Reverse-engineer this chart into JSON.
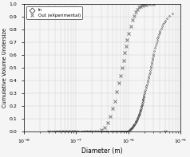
{
  "title": "",
  "xlabel": "Diameter (m)",
  "ylabel": "Cumulative Volume Undersize",
  "ylim": [
    0,
    1
  ],
  "xlim": [
    1e-08,
    1e-05
  ],
  "yticks": [
    0.0,
    0.1,
    0.2,
    0.3,
    0.4,
    0.5,
    0.6,
    0.7,
    0.8,
    0.9,
    1.0
  ],
  "legend_labels": [
    "In",
    "Out (eXperimental)"
  ],
  "in_color": "#444444",
  "out_color": "#777777",
  "in_x": [
    3e-08,
    3.2e-08,
    3.4e-08,
    3.6e-08,
    3.8e-08,
    4e-08,
    4.2e-08,
    4.4e-08,
    4.6e-08,
    4.8e-08,
    5e-08,
    5.2e-08,
    5.4e-08,
    5.6e-08,
    5.8e-08,
    6e-08,
    6.2e-08,
    6.4e-08,
    6.6e-08,
    6.8e-08,
    7e-08,
    7.2e-08,
    7.4e-08,
    7.6e-08,
    7.8e-08,
    8e-08,
    8.2e-08,
    8.4e-08,
    8.6e-08,
    8.8e-08,
    9e-08,
    9.2e-08,
    9.4e-08,
    9.6e-08,
    9.8e-08,
    1e-07,
    1.05e-07,
    1.1e-07,
    1.15e-07,
    1.2e-07,
    1.25e-07,
    1.3e-07,
    1.35e-07,
    1.4e-07,
    1.45e-07,
    1.5e-07,
    1.55e-07,
    1.6e-07,
    1.65e-07,
    1.7e-07,
    1.75e-07,
    1.8e-07,
    1.85e-07,
    1.9e-07,
    1.95e-07,
    2e-07,
    2.1e-07,
    2.2e-07,
    2.3e-07,
    2.4e-07,
    2.5e-07,
    2.6e-07,
    2.7e-07,
    2.8e-07,
    2.9e-07,
    3e-07,
    3.1e-07,
    3.2e-07,
    3.3e-07,
    3.4e-07,
    3.5e-07,
    3.6e-07,
    3.7e-07,
    3.8e-07,
    3.9e-07,
    4e-07,
    4.2e-07,
    4.4e-07,
    4.6e-07,
    4.8e-07,
    5e-07,
    5.2e-07,
    5.4e-07,
    5.6e-07,
    5.8e-07,
    6e-07,
    6.2e-07,
    6.4e-07,
    6.6e-07,
    6.8e-07,
    7e-07,
    7.2e-07,
    7.4e-07,
    7.6e-07,
    7.8e-07,
    8e-07,
    8.2e-07,
    8.4e-07,
    8.6e-07,
    8.8e-07,
    9e-07,
    9.2e-07,
    9.4e-07,
    9.6e-07,
    9.8e-07,
    1e-06,
    1.02e-06,
    1.04e-06,
    1.06e-06,
    1.08e-06,
    1.1e-06,
    1.12e-06,
    1.14e-06,
    1.16e-06,
    1.18e-06,
    1.2e-06,
    1.22e-06,
    1.24e-06,
    1.26e-06,
    1.28e-06,
    1.3e-06,
    1.32e-06,
    1.34e-06,
    1.36e-06,
    1.38e-06,
    1.4e-06,
    1.42e-06,
    1.44e-06,
    1.46e-06,
    1.48e-06,
    1.5e-06,
    1.52e-06,
    1.54e-06,
    1.56e-06,
    1.58e-06,
    1.6e-06,
    1.62e-06,
    1.64e-06,
    1.66e-06,
    1.68e-06,
    1.7e-06,
    1.72e-06,
    1.74e-06,
    1.76e-06,
    1.78e-06,
    1.8e-06,
    1.82e-06,
    1.84e-06,
    1.86e-06,
    1.88e-06,
    1.9e-06,
    1.92e-06,
    1.94e-06,
    1.96e-06,
    1.98e-06,
    2e-06,
    2.05e-06,
    2.1e-06,
    2.15e-06,
    2.2e-06,
    2.25e-06,
    2.3e-06,
    2.35e-06,
    2.4e-06,
    2.45e-06,
    2.5e-06,
    2.55e-06,
    2.6e-06,
    2.65e-06,
    2.7e-06,
    2.75e-06,
    2.8e-06,
    2.85e-06,
    2.9e-06,
    2.95e-06,
    3e-06,
    3.1e-06,
    3.2e-06,
    3.3e-06,
    3.4e-06,
    3.5e-06,
    3.6e-06,
    3.7e-06,
    3.8e-06,
    3.9e-06,
    4e-06,
    4.2e-06,
    4.4e-06,
    4.6e-06,
    4.8e-06,
    5e-06,
    5.5e-06,
    6e-06,
    7e-06
  ],
  "in_y": [
    0.0,
    0.0,
    0.0,
    0.0,
    0.0,
    0.0,
    0.0,
    0.0,
    0.0,
    0.0,
    0.0,
    0.0,
    0.0,
    0.0,
    0.0,
    0.0,
    0.0,
    0.0,
    0.0,
    0.0,
    0.0,
    0.0,
    0.0,
    0.0,
    0.0,
    0.0,
    0.0,
    0.0,
    0.0,
    0.0,
    0.0,
    0.0,
    0.0,
    0.0,
    0.0,
    0.0,
    0.0,
    0.0,
    0.0,
    0.0,
    0.0,
    0.0,
    0.0,
    0.0,
    0.0,
    0.0,
    0.0,
    0.0,
    0.0,
    0.0,
    0.0,
    0.0,
    0.0,
    0.0,
    0.0,
    0.0,
    0.0,
    0.0,
    0.0,
    0.0,
    0.0,
    0.0,
    0.0,
    0.0,
    0.0,
    0.0,
    0.0,
    0.0,
    0.0,
    0.0,
    0.0,
    0.0,
    0.0,
    0.0,
    0.0,
    0.0,
    0.0,
    0.0,
    0.0,
    0.0,
    0.0,
    0.0,
    0.0,
    0.0,
    0.0,
    0.0,
    0.0,
    0.0,
    0.0,
    0.0,
    0.0,
    0.0,
    0.0,
    0.0,
    0.0,
    0.0,
    0.0,
    0.0,
    0.0,
    0.0,
    0.0,
    0.0,
    0.0,
    0.0,
    0.0,
    0.005,
    0.008,
    0.011,
    0.014,
    0.017,
    0.02,
    0.023,
    0.026,
    0.029,
    0.032,
    0.036,
    0.04,
    0.044,
    0.048,
    0.052,
    0.056,
    0.06,
    0.064,
    0.068,
    0.073,
    0.078,
    0.083,
    0.088,
    0.093,
    0.098,
    0.104,
    0.11,
    0.116,
    0.122,
    0.128,
    0.134,
    0.14,
    0.147,
    0.154,
    0.161,
    0.168,
    0.175,
    0.183,
    0.191,
    0.199,
    0.207,
    0.215,
    0.223,
    0.232,
    0.241,
    0.25,
    0.259,
    0.268,
    0.278,
    0.288,
    0.298,
    0.312,
    0.326,
    0.341,
    0.356,
    0.371,
    0.386,
    0.402,
    0.418,
    0.434,
    0.45,
    0.466,
    0.482,
    0.498,
    0.514,
    0.53,
    0.546,
    0.562,
    0.578,
    0.594,
    0.61,
    0.635,
    0.658,
    0.678,
    0.697,
    0.715,
    0.732,
    0.748,
    0.763,
    0.777,
    0.79,
    0.81,
    0.828,
    0.844,
    0.858,
    0.871,
    0.892,
    0.908,
    0.93
  ],
  "out_x": [
    3e-08,
    4e-08,
    5e-08,
    6e-08,
    7e-08,
    8e-08,
    9e-08,
    1e-07,
    1.5e-07,
    2e-07,
    2.5e-07,
    3e-07,
    3.5e-07,
    4e-07,
    4.5e-07,
    5e-07,
    5.5e-07,
    6e-07,
    6.5e-07,
    7e-07,
    7.5e-07,
    8e-07,
    8.5e-07,
    9e-07,
    9.5e-07,
    1e-06,
    1.1e-06,
    1.2e-06,
    1.3e-06,
    1.4e-06,
    1.5e-06,
    1.6e-06,
    1.7e-06,
    1.8e-06,
    1.9e-06,
    2e-06,
    2.2e-06,
    2.5e-06,
    3e-06,
    5e-06
  ],
  "out_y": [
    0.0,
    0.0,
    0.0,
    0.0,
    0.0,
    0.0,
    0.0,
    0.0,
    0.0,
    0.0,
    0.0,
    0.01,
    0.03,
    0.07,
    0.12,
    0.18,
    0.24,
    0.31,
    0.38,
    0.44,
    0.5,
    0.56,
    0.62,
    0.67,
    0.72,
    0.77,
    0.83,
    0.88,
    0.91,
    0.94,
    0.96,
    0.975,
    0.984,
    0.99,
    0.994,
    0.997,
    0.999,
    1.0,
    1.0,
    0.0
  ],
  "background_color": "#f5f5f5",
  "grid_color": "#cccccc"
}
